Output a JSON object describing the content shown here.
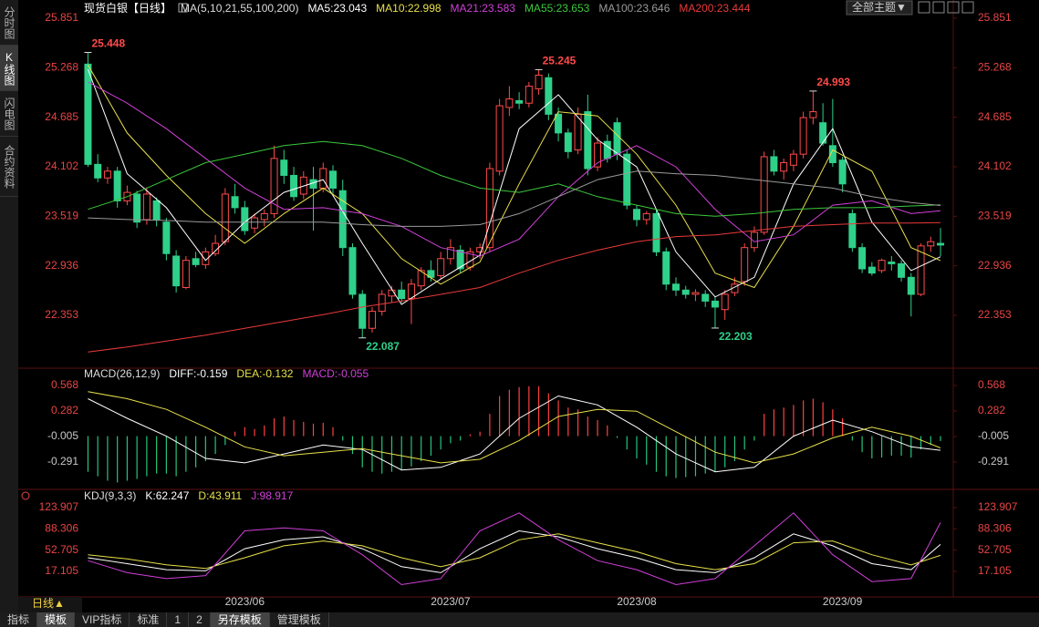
{
  "ui": {
    "sidebar": [
      "分时图",
      "K线图",
      "闪电图",
      "合约资料"
    ],
    "theme_button": "全部主题▼",
    "period": "日线▲",
    "tabs": [
      "指标",
      "模板",
      "VIP指标",
      "标准",
      "1",
      "2",
      "另存模板",
      "管理模板"
    ]
  },
  "chart_data": [
    {
      "type": "candlestick",
      "title": "现货白银【日线】",
      "indicator": "MA(5,10,21,55,100,200)",
      "up_color": "#ff4a4a",
      "down_color": "#2fd08a",
      "xlim": [
        -0.6,
        88.3
      ],
      "xticks": [
        {
          "value": 16,
          "label": "2023/06"
        },
        {
          "value": 37,
          "label": "2023/07"
        },
        {
          "value": 56,
          "label": "2023/08"
        },
        {
          "value": 77,
          "label": "2023/09"
        }
      ],
      "ylim": [
        21.752,
        25.979
      ],
      "yticks": [
        25.851,
        25.268,
        24.685,
        24.102,
        23.519,
        22.936,
        22.353
      ],
      "open": [
        25.31,
        24.13,
        23.97,
        24.05,
        23.7,
        23.78,
        23.48,
        23.7,
        23.45,
        23.05,
        22.68,
        23.02,
        22.95,
        23.08,
        23.22,
        23.75,
        23.62,
        23.38,
        23.48,
        23.55,
        24.18,
        24.0,
        23.78,
        23.95,
        23.85,
        24.05,
        23.82,
        23.15,
        22.6,
        22.2,
        22.4,
        22.58,
        22.65,
        22.55,
        22.7,
        22.88,
        22.82,
        23.02,
        23.12,
        22.92,
        23.1,
        23.15,
        24.05,
        24.8,
        24.88,
        24.85,
        25.02,
        25.15,
        24.72,
        24.5,
        24.3,
        24.75,
        24.1,
        24.4,
        24.62,
        24.25,
        23.6,
        23.48,
        23.55,
        23.1,
        22.72,
        22.65,
        22.6,
        22.6,
        22.52,
        22.42,
        22.62,
        22.75,
        23.15,
        23.33,
        24.22,
        24.05,
        24.12,
        24.25,
        24.68,
        24.62,
        24.35,
        24.18,
        23.55,
        23.15,
        22.92,
        22.88,
        22.98,
        22.96,
        22.8,
        22.6,
        23.17,
        23.2
      ],
      "high": [
        25.448,
        24.25,
        24.1,
        24.1,
        23.88,
        23.82,
        23.86,
        23.74,
        23.5,
        23.12,
        23.05,
        23.1,
        23.15,
        23.3,
        23.85,
        23.9,
        23.7,
        23.55,
        23.6,
        24.35,
        24.3,
        24.1,
        24.05,
        24.1,
        24.15,
        24.12,
        23.95,
        23.2,
        22.65,
        22.45,
        22.65,
        22.7,
        22.75,
        22.78,
        22.92,
        23.0,
        23.1,
        23.25,
        23.18,
        23.15,
        23.2,
        24.15,
        24.9,
        25.05,
        24.98,
        25.1,
        25.245,
        25.2,
        24.8,
        24.55,
        24.8,
        24.95,
        24.45,
        24.48,
        24.68,
        24.3,
        23.65,
        23.58,
        23.6,
        23.15,
        22.8,
        22.7,
        22.66,
        22.65,
        22.58,
        22.65,
        22.8,
        23.2,
        23.4,
        24.28,
        24.3,
        24.2,
        24.3,
        24.75,
        24.993,
        24.85,
        24.9,
        24.22,
        23.6,
        23.2,
        22.98,
        23.02,
        23.05,
        23.0,
        22.85,
        23.2,
        23.28,
        23.38
      ],
      "low": [
        24.1,
        23.92,
        23.9,
        23.62,
        23.65,
        23.38,
        23.42,
        23.4,
        23.0,
        22.62,
        22.66,
        22.92,
        22.9,
        23.05,
        23.18,
        23.55,
        23.3,
        23.32,
        23.4,
        23.5,
        23.9,
        23.7,
        23.72,
        23.35,
        23.8,
        23.78,
        23.05,
        22.55,
        22.087,
        22.15,
        22.35,
        22.5,
        22.5,
        22.25,
        22.65,
        22.75,
        22.78,
        22.95,
        22.85,
        22.88,
        23.02,
        23.1,
        24.0,
        24.7,
        24.78,
        24.8,
        24.95,
        24.65,
        24.4,
        24.2,
        24.25,
        24.0,
        24.05,
        24.15,
        24.18,
        23.6,
        23.4,
        23.42,
        23.05,
        22.65,
        22.58,
        22.55,
        22.52,
        22.45,
        22.203,
        22.3,
        22.58,
        22.7,
        23.1,
        23.3,
        24.0,
        23.95,
        24.05,
        24.2,
        24.6,
        24.35,
        24.1,
        23.8,
        23.1,
        22.85,
        22.82,
        22.85,
        22.88,
        22.75,
        22.34,
        22.58,
        23.1,
        23.05
      ],
      "close": [
        24.13,
        23.97,
        24.05,
        23.7,
        23.8,
        23.45,
        23.78,
        23.48,
        23.08,
        22.7,
        23.0,
        22.95,
        23.1,
        23.2,
        23.78,
        23.62,
        23.35,
        23.5,
        23.55,
        24.2,
        24.0,
        23.75,
        23.98,
        23.85,
        24.08,
        23.85,
        23.15,
        22.6,
        22.2,
        22.4,
        22.6,
        22.65,
        22.55,
        22.72,
        22.88,
        22.8,
        23.02,
        23.15,
        22.9,
        23.1,
        23.15,
        24.08,
        24.82,
        24.9,
        24.85,
        25.05,
        25.18,
        24.72,
        24.5,
        24.28,
        24.72,
        24.08,
        24.38,
        24.2,
        24.25,
        23.65,
        23.48,
        23.55,
        23.1,
        22.72,
        22.65,
        22.6,
        22.62,
        22.52,
        22.45,
        22.6,
        22.72,
        23.15,
        23.33,
        24.22,
        24.05,
        24.15,
        24.25,
        24.68,
        24.75,
        24.38,
        24.15,
        23.9,
        23.15,
        22.9,
        22.85,
        23.0,
        22.96,
        22.8,
        22.6,
        23.17,
        23.22,
        23.18
      ],
      "series": [
        {
          "name": "MA5:23.043",
          "color": "#ffffff",
          "x": [
            0,
            4,
            8,
            12,
            16,
            20,
            24,
            28,
            32,
            36,
            40,
            44,
            48,
            52,
            56,
            60,
            64,
            68,
            72,
            76,
            80,
            84,
            87
          ],
          "values": [
            25.25,
            24.02,
            23.62,
            23.0,
            23.45,
            23.8,
            23.95,
            23.2,
            22.48,
            22.78,
            23.06,
            24.55,
            24.95,
            24.42,
            24.1,
            23.1,
            22.57,
            22.8,
            23.9,
            24.55,
            23.45,
            22.88,
            23.043
          ]
        },
        {
          "name": "MA10:22.998",
          "color": "#e8e04a",
          "x": [
            0,
            4,
            8,
            12,
            16,
            20,
            24,
            28,
            32,
            36,
            40,
            44,
            48,
            52,
            56,
            60,
            64,
            68,
            72,
            76,
            80,
            84,
            87
          ],
          "values": [
            25.3,
            24.5,
            24.0,
            23.55,
            23.2,
            23.55,
            23.85,
            23.55,
            23.02,
            22.72,
            22.98,
            23.9,
            24.75,
            24.7,
            24.25,
            23.65,
            22.85,
            22.68,
            23.4,
            24.3,
            24.05,
            23.15,
            22.998
          ]
        },
        {
          "name": "MA21:23.583",
          "color": "#d040d8",
          "x": [
            0,
            4,
            8,
            12,
            16,
            20,
            24,
            28,
            32,
            36,
            40,
            44,
            48,
            52,
            56,
            60,
            64,
            68,
            72,
            76,
            80,
            84,
            87
          ],
          "values": [
            25.1,
            24.85,
            24.55,
            24.2,
            23.85,
            23.6,
            23.62,
            23.55,
            23.4,
            23.15,
            23.05,
            23.25,
            23.75,
            24.15,
            24.35,
            24.1,
            23.6,
            23.22,
            23.3,
            23.65,
            23.7,
            23.55,
            23.583
          ]
        },
        {
          "name": "MA55:23.653",
          "color": "#3cc83c",
          "x": [
            0,
            4,
            8,
            12,
            16,
            20,
            24,
            28,
            32,
            36,
            40,
            44,
            48,
            52,
            56,
            60,
            64,
            68,
            72,
            76,
            80,
            84,
            87
          ],
          "values": [
            23.6,
            23.75,
            23.95,
            24.15,
            24.25,
            24.35,
            24.4,
            24.35,
            24.2,
            24.0,
            23.85,
            23.8,
            23.9,
            23.75,
            23.65,
            23.55,
            23.52,
            23.55,
            23.6,
            23.62,
            23.62,
            23.64,
            23.653
          ]
        },
        {
          "name": "MA100:23.646",
          "color": "#9a9a9a",
          "x": [
            0,
            4,
            8,
            12,
            16,
            20,
            24,
            28,
            32,
            36,
            40,
            44,
            48,
            52,
            56,
            60,
            64,
            68,
            72,
            76,
            80,
            84,
            87
          ],
          "values": [
            23.5,
            23.48,
            23.47,
            23.45,
            23.45,
            23.45,
            23.45,
            23.42,
            23.4,
            23.4,
            23.42,
            23.55,
            23.75,
            23.95,
            24.05,
            24.02,
            24.0,
            23.95,
            23.9,
            23.85,
            23.75,
            23.68,
            23.646
          ]
        },
        {
          "name": "MA200:23.444",
          "color": "#e83a3a",
          "x": [
            0,
            4,
            8,
            12,
            16,
            20,
            24,
            28,
            32,
            36,
            40,
            44,
            48,
            52,
            56,
            60,
            64,
            68,
            72,
            76,
            80,
            84,
            87
          ],
          "values": [
            21.92,
            21.98,
            22.05,
            22.12,
            22.2,
            22.28,
            22.36,
            22.45,
            22.52,
            22.6,
            22.68,
            22.85,
            23.0,
            23.12,
            23.22,
            23.28,
            23.3,
            23.35,
            23.4,
            23.42,
            23.44,
            23.44,
            23.444
          ]
        }
      ],
      "annotations": [
        {
          "x": 0,
          "value": 25.448
        },
        {
          "x": 28,
          "value": 22.087
        },
        {
          "x": 46,
          "value": 25.245
        },
        {
          "x": 64,
          "value": 22.203
        },
        {
          "x": 74,
          "value": 24.993
        }
      ]
    },
    {
      "type": "macd",
      "title": "MACD(26,12,9)",
      "ylim": [
        -0.577,
        0.752
      ],
      "yticks": [
        0.568,
        0.282,
        -0.005,
        -0.291
      ],
      "histogram": {
        "name": "MACD:-0.055",
        "color": "#d040d8",
        "up_color": "#ff4040",
        "down_color": "#25c47c",
        "values": [
          -0.4,
          -0.45,
          -0.5,
          -0.52,
          -0.5,
          -0.48,
          -0.45,
          -0.42,
          -0.42,
          -0.45,
          -0.4,
          -0.35,
          -0.28,
          -0.2,
          -0.1,
          0.05,
          0.1,
          0.08,
          0.12,
          0.2,
          0.22,
          0.18,
          0.16,
          0.14,
          0.15,
          0.1,
          -0.05,
          -0.2,
          -0.35,
          -0.4,
          -0.42,
          -0.4,
          -0.38,
          -0.34,
          -0.28,
          -0.22,
          -0.15,
          -0.08,
          -0.05,
          0.02,
          0.05,
          0.25,
          0.45,
          0.52,
          0.55,
          0.56,
          0.56,
          0.48,
          0.4,
          0.32,
          0.3,
          0.22,
          0.18,
          0.12,
          -0.02,
          -0.15,
          -0.25,
          -0.32,
          -0.4,
          -0.45,
          -0.47,
          -0.46,
          -0.45,
          -0.42,
          -0.4,
          -0.35,
          -0.28,
          -0.15,
          -0.05,
          0.25,
          0.3,
          0.32,
          0.35,
          0.4,
          0.42,
          0.38,
          0.3,
          0.2,
          -0.05,
          -0.18,
          -0.25,
          -0.24,
          -0.22,
          -0.22,
          -0.24,
          -0.15,
          -0.1,
          -0.055
        ]
      },
      "series": [
        {
          "name": "DIFF:-0.159",
          "color": "#ffffff",
          "x": [
            0,
            4,
            8,
            12,
            16,
            20,
            24,
            28,
            32,
            36,
            40,
            44,
            48,
            52,
            56,
            60,
            64,
            68,
            72,
            76,
            80,
            84,
            87
          ],
          "values": [
            0.42,
            0.2,
            0.0,
            -0.25,
            -0.3,
            -0.2,
            -0.1,
            -0.15,
            -0.38,
            -0.35,
            -0.2,
            0.2,
            0.45,
            0.35,
            0.1,
            -0.2,
            -0.4,
            -0.35,
            0.0,
            0.18,
            0.05,
            -0.12,
            -0.159
          ]
        },
        {
          "name": "DEA:-0.132",
          "color": "#e8e04a",
          "x": [
            0,
            4,
            8,
            12,
            16,
            20,
            24,
            28,
            32,
            36,
            40,
            44,
            48,
            52,
            56,
            60,
            64,
            68,
            72,
            76,
            80,
            84,
            87
          ],
          "values": [
            0.5,
            0.42,
            0.3,
            0.1,
            -0.12,
            -0.22,
            -0.18,
            -0.14,
            -0.22,
            -0.3,
            -0.26,
            -0.05,
            0.22,
            0.3,
            0.28,
            0.05,
            -0.18,
            -0.3,
            -0.2,
            -0.02,
            0.1,
            0.0,
            -0.132
          ]
        }
      ]
    },
    {
      "type": "line",
      "title": "KDJ(9,3,3)",
      "ylim": [
        -45.5,
        142.2
      ],
      "yticks": [
        123.907,
        88.306,
        52.705,
        17.105
      ],
      "series": [
        {
          "name": "K:62.247",
          "color": "#ffffff",
          "x": [
            0,
            4,
            8,
            12,
            16,
            20,
            24,
            28,
            32,
            36,
            40,
            44,
            48,
            52,
            56,
            60,
            64,
            68,
            72,
            76,
            80,
            84,
            87
          ],
          "values": [
            40,
            30,
            20,
            18,
            55,
            70,
            75,
            55,
            25,
            15,
            55,
            85,
            75,
            55,
            40,
            20,
            15,
            40,
            80,
            60,
            30,
            20,
            62.247
          ]
        },
        {
          "name": "D:43.911",
          "color": "#e8e04a",
          "x": [
            0,
            4,
            8,
            12,
            16,
            20,
            24,
            28,
            32,
            36,
            40,
            44,
            48,
            52,
            56,
            60,
            64,
            68,
            72,
            76,
            80,
            84,
            87
          ],
          "values": [
            45,
            38,
            28,
            22,
            40,
            60,
            68,
            60,
            40,
            25,
            40,
            70,
            80,
            65,
            50,
            30,
            20,
            30,
            65,
            68,
            45,
            28,
            43.911
          ]
        },
        {
          "name": "J:98.917",
          "color": "#d040d8",
          "x": [
            0,
            4,
            8,
            12,
            16,
            20,
            24,
            28,
            32,
            36,
            40,
            44,
            48,
            52,
            56,
            60,
            64,
            68,
            72,
            76,
            80,
            84,
            87
          ],
          "values": [
            35,
            15,
            5,
            10,
            85,
            90,
            85,
            45,
            -5,
            5,
            85,
            115,
            70,
            35,
            20,
            -5,
            5,
            60,
            115,
            45,
            0,
            5,
            98.917
          ]
        }
      ]
    }
  ]
}
